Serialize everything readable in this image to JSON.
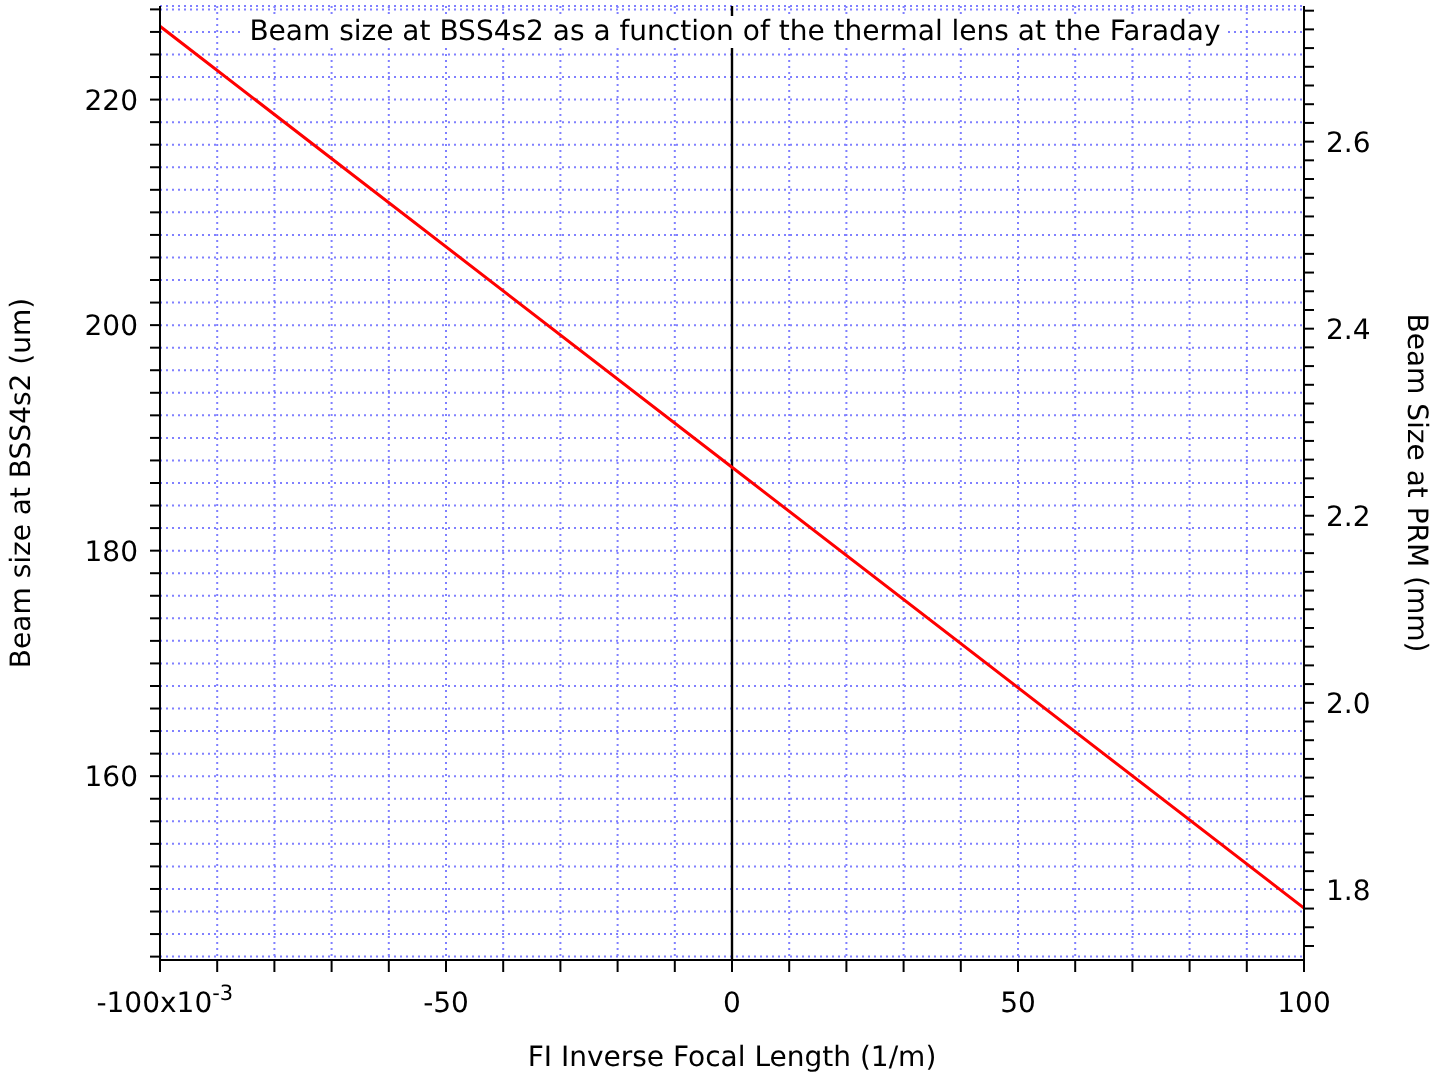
{
  "chart_data": {
    "type": "line",
    "title": "Beam size at BSS4s2 as a function of the thermal lens at the Faraday",
    "xlabel": "FI Inverse Focal Length (1/m)",
    "ylabel": "Beam size at BSS4s2 (um)",
    "y2label": "Beam Size at PRM (mm)",
    "series": [
      {
        "x": [
          -100,
          0,
          100
        ],
        "values": [
          226.5,
          187.4,
          148.3
        ],
        "color": "#ff0000"
      }
    ],
    "xlim": [
      -100,
      100
    ],
    "annotations": [
      "x10$^{-3}$"
    ],
    "xticks": [
      -100,
      {
        "value": -90,
        "label": null
      },
      {
        "value": -80,
        "label": null
      },
      {
        "value": -70,
        "label": null
      },
      {
        "value": -60,
        "label": null
      },
      -50,
      {
        "value": -40,
        "label": null
      },
      {
        "value": -30,
        "label": null
      },
      {
        "value": -20,
        "label": null
      },
      {
        "value": -10,
        "label": null
      },
      0,
      {
        "value": 10,
        "label": null
      },
      {
        "value": 20,
        "label": null
      },
      {
        "value": 30,
        "label": null
      },
      {
        "value": 40,
        "label": null
      },
      50,
      {
        "value": 60,
        "label": null
      },
      {
        "value": 70,
        "label": null
      },
      {
        "value": 80,
        "label": null
      },
      {
        "value": 90,
        "label": null
      },
      100
    ],
    "ylim": [
      143.7,
      228.3
    ],
    "yticks": [
      {
        "value": 144,
        "label": null
      },
      {
        "value": 146,
        "label": null
      },
      {
        "value": 148,
        "label": null
      },
      {
        "value": 150,
        "label": null
      },
      {
        "value": 152,
        "label": null
      },
      {
        "value": 154,
        "label": null
      },
      {
        "value": 156,
        "label": null
      },
      {
        "value": 158,
        "label": null
      },
      160,
      {
        "value": 162,
        "label": null
      },
      {
        "value": 164,
        "label": null
      },
      {
        "value": 166,
        "label": null
      },
      {
        "value": 168,
        "label": null
      },
      {
        "value": 170,
        "label": null
      },
      {
        "value": 172,
        "label": null
      },
      {
        "value": 174,
        "label": null
      },
      {
        "value": 176,
        "label": null
      },
      {
        "value": 178,
        "label": null
      },
      180,
      {
        "value": 182,
        "label": null
      },
      {
        "value": 184,
        "label": null
      },
      {
        "value": 186,
        "label": null
      },
      {
        "value": 188,
        "label": null
      },
      {
        "value": 190,
        "label": null
      },
      {
        "value": 192,
        "label": null
      },
      {
        "value": 194,
        "label": null
      },
      {
        "value": 196,
        "label": null
      },
      {
        "value": 198,
        "label": null
      },
      200,
      {
        "value": 202,
        "label": null
      },
      {
        "value": 204,
        "label": null
      },
      {
        "value": 206,
        "label": null
      },
      {
        "value": 208,
        "label": null
      },
      {
        "value": 210,
        "label": null
      },
      {
        "value": 212,
        "label": null
      },
      {
        "value": 214,
        "label": null
      },
      {
        "value": 216,
        "label": null
      },
      {
        "value": 218,
        "label": null
      },
      220,
      {
        "value": 222,
        "label": null
      },
      {
        "value": 224,
        "label": null
      },
      {
        "value": 226,
        "label": null
      },
      {
        "value": 228,
        "label": null
      }
    ],
    "y2lim": [
      1.725,
      2.745
    ],
    "y2ticks": [
      {
        "value": 1.74,
        "label": null
      },
      {
        "value": 1.76,
        "label": null
      },
      {
        "value": 1.78,
        "label": null
      },
      {
        "value": 1.8,
        "label": "1.8"
      },
      {
        "value": 1.82,
        "label": null
      },
      {
        "value": 1.84,
        "label": null
      },
      {
        "value": 1.86,
        "label": null
      },
      {
        "value": 1.88,
        "label": null
      },
      {
        "value": 1.9,
        "label": null
      },
      {
        "value": 1.92,
        "label": null
      },
      {
        "value": 1.94,
        "label": null
      },
      {
        "value": 1.96,
        "label": null
      },
      {
        "value": 1.98,
        "label": null
      },
      {
        "value": 2.0,
        "label": "2.0"
      },
      {
        "value": 2.02,
        "label": null
      },
      {
        "value": 2.04,
        "label": null
      },
      {
        "value": 2.06,
        "label": null
      },
      {
        "value": 2.08,
        "label": null
      },
      {
        "value": 2.1,
        "label": null
      },
      {
        "value": 2.12,
        "label": null
      },
      {
        "value": 2.14,
        "label": null
      },
      {
        "value": 2.16,
        "label": null
      },
      {
        "value": 2.18,
        "label": null
      },
      {
        "value": 2.2,
        "label": "2.2"
      },
      {
        "value": 2.22,
        "label": null
      },
      {
        "value": 2.24,
        "label": null
      },
      {
        "value": 2.26,
        "label": null
      },
      {
        "value": 2.28,
        "label": null
      },
      {
        "value": 2.3,
        "label": null
      },
      {
        "value": 2.32,
        "label": null
      },
      {
        "value": 2.34,
        "label": null
      },
      {
        "value": 2.36,
        "label": null
      },
      {
        "value": 2.38,
        "label": null
      },
      {
        "value": 2.4,
        "label": "2.4"
      },
      {
        "value": 2.42,
        "label": null
      },
      {
        "value": 2.44,
        "label": null
      },
      {
        "value": 2.46,
        "label": null
      },
      {
        "value": 2.48,
        "label": null
      },
      {
        "value": 2.5,
        "label": null
      },
      {
        "value": 2.52,
        "label": null
      },
      {
        "value": 2.54,
        "label": null
      },
      {
        "value": 2.56,
        "label": null
      },
      {
        "value": 2.58,
        "label": null
      },
      {
        "value": 2.6,
        "label": "2.6"
      },
      {
        "value": 2.62,
        "label": null
      },
      {
        "value": 2.64,
        "label": null
      },
      {
        "value": 2.66,
        "label": null
      },
      {
        "value": 2.68,
        "label": null
      },
      {
        "value": 2.7,
        "label": null
      },
      {
        "value": 2.72,
        "label": null
      },
      {
        "value": 2.74,
        "label": null
      }
    ],
    "ref_lines": [
      {
        "axis": "x",
        "value": 0,
        "color": "#000000"
      }
    ],
    "grid": true,
    "marker": "none",
    "line_style": "solid"
  }
}
